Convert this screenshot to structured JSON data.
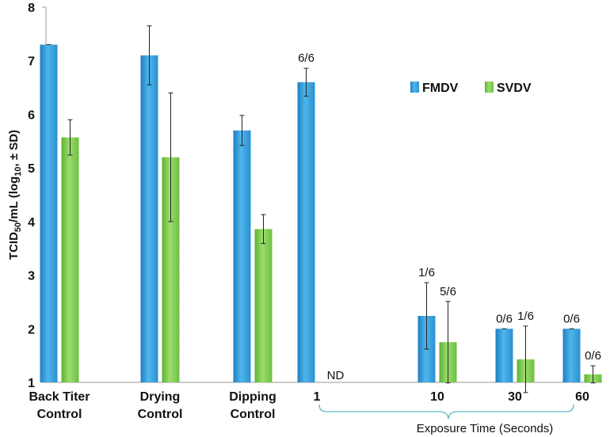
{
  "chart_data": {
    "type": "bar",
    "title": "",
    "ylabel_parts": [
      "TCID",
      "50",
      "/mL (log",
      "10",
      ", ± SD)"
    ],
    "xlabel": "Exposure Time (Seconds)",
    "ylim": [
      1,
      8
    ],
    "yticks": [
      "1",
      "2",
      "3",
      "4",
      "5",
      "6",
      "7",
      "8"
    ],
    "categories": [
      [
        "Back Titer",
        "Control"
      ],
      [
        "Drying",
        "Control"
      ],
      [
        "Dipping",
        "Control"
      ],
      [
        "1"
      ],
      [
        "10"
      ],
      [
        "30"
      ],
      [
        "60"
      ]
    ],
    "series": [
      {
        "name": "FMDV",
        "color": "#3fa9e0",
        "values": [
          7.3,
          7.1,
          5.7,
          6.6,
          2.24,
          2.0,
          2.0
        ],
        "errors": [
          0.0,
          0.55,
          0.28,
          0.26,
          0.62,
          0.0,
          0.0
        ],
        "labels": [
          "",
          "",
          "",
          "6/6",
          "1/6",
          "0/6",
          "0/6"
        ]
      },
      {
        "name": "SVDV",
        "color": "#7dcd4f",
        "values": [
          5.57,
          5.2,
          3.86,
          null,
          1.75,
          1.43,
          1.15
        ],
        "errors": [
          0.33,
          1.2,
          0.27,
          null,
          0.76,
          0.62,
          0.16
        ],
        "labels": [
          "",
          "",
          "",
          "ND",
          "5/6",
          "1/6",
          "0/6"
        ]
      }
    ],
    "legend_position": "top-right",
    "grid": false
  }
}
